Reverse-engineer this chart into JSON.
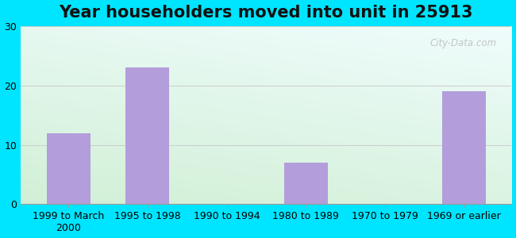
{
  "title": "Year householders moved into unit in 25913",
  "categories": [
    "1999 to March\n2000",
    "1995 to 1998",
    "1990 to 1994",
    "1980 to 1989",
    "1970 to 1979",
    "1969 or earlier"
  ],
  "values": [
    12,
    23,
    0,
    7,
    0,
    19
  ],
  "bar_color": "#b39ddb",
  "ylim": [
    0,
    30
  ],
  "yticks": [
    0,
    10,
    20,
    30
  ],
  "background_color": "#00e5ff",
  "grid_color": "#cccccc",
  "title_fontsize": 15,
  "tick_fontsize": 9,
  "watermark": "City-Data.com",
  "bar_width": 0.55,
  "plot_bg_topleft": [
    0.88,
    0.97,
    0.88
  ],
  "plot_bg_topright": [
    0.88,
    0.97,
    0.97
  ],
  "plot_bg_bottomleft": [
    0.82,
    0.95,
    0.82
  ],
  "plot_bg_bottomright": [
    0.85,
    0.97,
    0.97
  ]
}
